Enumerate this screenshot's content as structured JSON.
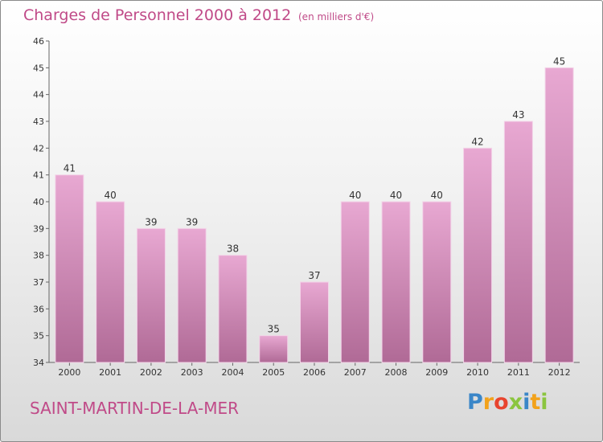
{
  "header": {
    "title": "Charges de Personnel 2000 à 2012",
    "unit": "(en milliers d'€)"
  },
  "footer": {
    "place": "SAINT-MARTIN-DE-LA-MER",
    "logo_letters": [
      "P",
      "r",
      "o",
      "x",
      "i",
      "t",
      "i"
    ],
    "logo_colors": [
      "#3a86c8",
      "#f2a21b",
      "#e8442e",
      "#8bc53f",
      "#3a86c8",
      "#f2a21b",
      "#8bc53f"
    ]
  },
  "colors": {
    "bar_top": "#e8a8d2",
    "bar_bottom": "#b06a96",
    "text_accent": "#c04a88"
  },
  "chart_data": {
    "type": "bar",
    "categories": [
      "2000",
      "2001",
      "2002",
      "2003",
      "2004",
      "2005",
      "2006",
      "2007",
      "2008",
      "2009",
      "2010",
      "2011",
      "2012"
    ],
    "values": [
      41,
      40,
      39,
      39,
      38,
      35,
      37,
      40,
      40,
      40,
      42,
      43,
      45
    ],
    "title": "Charges de Personnel 2000 à 2012",
    "xlabel": "",
    "ylabel": "",
    "ylim": [
      34,
      46
    ],
    "yticks": [
      34,
      35,
      36,
      37,
      38,
      39,
      40,
      41,
      42,
      43,
      44,
      45,
      46
    ],
    "grid": false,
    "data_labels": true
  }
}
